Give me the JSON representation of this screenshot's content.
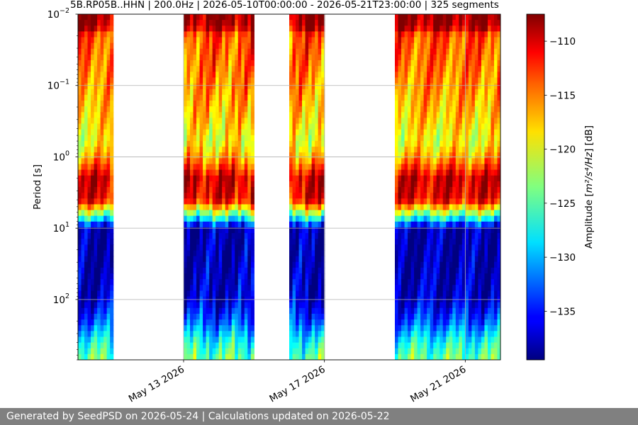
{
  "chart_data": {
    "type": "heatmap",
    "title": "5B.RP05B..HHN | 200.0Hz | 2026-05-10T00:00:00 - 2026-05-21T23:00:00 | 325 segments",
    "ylabel": "Period [s]",
    "yscale": "log",
    "yinverted": true,
    "ylim": [
      0.01,
      700
    ],
    "y_ticks": [
      {
        "value": 0.01,
        "base": "10",
        "exp": "−2"
      },
      {
        "value": 0.1,
        "base": "10",
        "exp": "−1"
      },
      {
        "value": 1,
        "base": "10",
        "exp": "0"
      },
      {
        "value": 10,
        "base": "10",
        "exp": "1"
      },
      {
        "value": 100,
        "base": "10",
        "exp": "2"
      }
    ],
    "xlim": [
      "2026-05-10T00:00:00",
      "2026-05-22T00:00:00"
    ],
    "x_ticks": [
      {
        "value": "2026-05-13",
        "label": "May 13 2026"
      },
      {
        "value": "2026-05-17",
        "label": "May 17 2026"
      },
      {
        "value": "2026-05-21",
        "label": "May 21 2026"
      }
    ],
    "grid": true,
    "data_segments": [
      {
        "start": "2026-05-10T00:00:00",
        "end": "2026-05-11T00:00:00"
      },
      {
        "start": "2026-05-13T00:00:00",
        "end": "2026-05-15T00:00:00"
      },
      {
        "start": "2026-05-16T00:00:00",
        "end": "2026-05-17T00:00:00"
      },
      {
        "start": "2026-05-19T00:00:00",
        "end": "2026-05-22T00:00:00"
      }
    ],
    "amplitude_profile": [
      {
        "period": 0.01,
        "db": -108
      },
      {
        "period": 0.015,
        "db": -109
      },
      {
        "period": 0.02,
        "db": -114
      },
      {
        "period": 0.05,
        "db": -115
      },
      {
        "period": 0.1,
        "db": -116
      },
      {
        "period": 0.3,
        "db": -118
      },
      {
        "period": 0.6,
        "db": -120
      },
      {
        "period": 1.0,
        "db": -117
      },
      {
        "period": 2.0,
        "db": -110
      },
      {
        "period": 4.0,
        "db": -111
      },
      {
        "period": 6.0,
        "db": -122
      },
      {
        "period": 8.0,
        "db": -130
      },
      {
        "period": 10.0,
        "db": -138
      },
      {
        "period": 30.0,
        "db": -138
      },
      {
        "period": 100.0,
        "db": -137
      },
      {
        "period": 200.0,
        "db": -133
      },
      {
        "period": 400.0,
        "db": -127
      },
      {
        "period": 700.0,
        "db": -124
      }
    ],
    "colorbar": {
      "label_prefix": "Amplitude [",
      "label_math": "m²/s⁴/Hz",
      "label_suffix": "] [dB]",
      "range": [
        -139.5,
        -107.5
      ],
      "ticks": [
        -110,
        -115,
        -120,
        -125,
        -130,
        -135
      ],
      "tick_labels": [
        "−110",
        "−115",
        "−120",
        "−125",
        "−130",
        "−135"
      ],
      "colormap": "jet"
    }
  },
  "footer": {
    "text": "Generated by SeedPSD on 2026-05-24 | Calculations updated on 2026-05-22",
    "background": "#808080",
    "color": "#ffffff"
  }
}
